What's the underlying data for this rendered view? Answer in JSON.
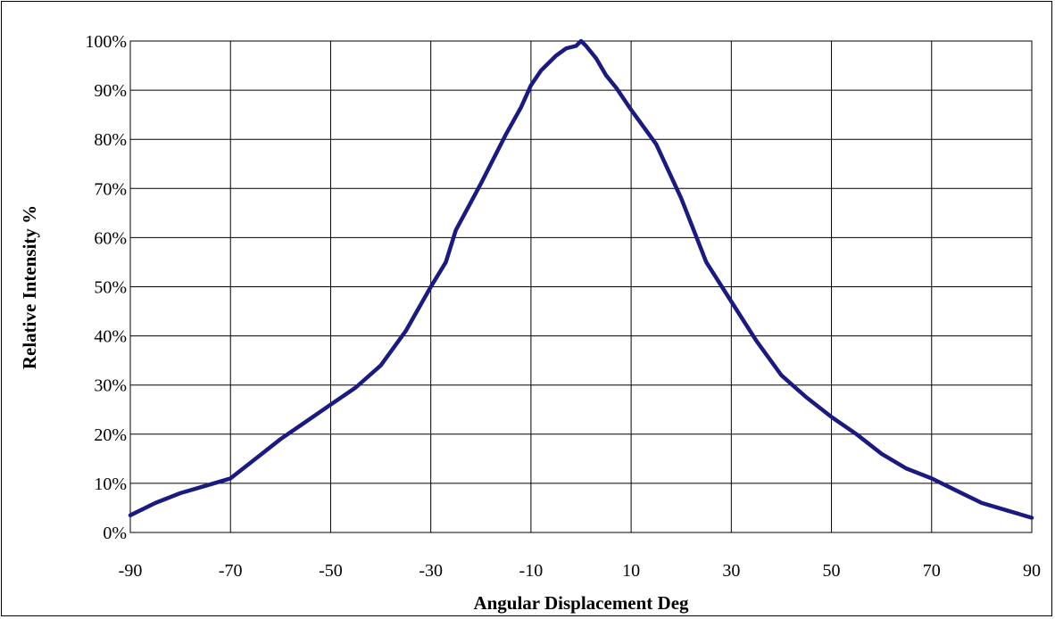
{
  "chart_data": {
    "type": "line",
    "title": "",
    "xlabel": "Angular Displacement  Deg",
    "ylabel": "Relative Intensity %",
    "xlim": [
      -90,
      90
    ],
    "ylim": [
      0,
      100
    ],
    "x_ticks": [
      "-90",
      "-70",
      "-50",
      "-30",
      "-10",
      "10",
      "30",
      "50",
      "70",
      "90"
    ],
    "y_ticks": [
      "0%",
      "10%",
      "20%",
      "30%",
      "40%",
      "50%",
      "60%",
      "70%",
      "80%",
      "90%",
      "100%"
    ],
    "grid": true,
    "legend": "none",
    "series": [
      {
        "color": "#1a1a80",
        "x": [
          -90,
          -85,
          -80,
          -75,
          -70,
          -65,
          -60,
          -55,
          -50,
          -45,
          -40,
          -35,
          -30,
          -27,
          -25,
          -20,
          -15,
          -12,
          -10,
          -8,
          -6,
          -5,
          -3,
          -1,
          0,
          1,
          3,
          5,
          7,
          10,
          15,
          20,
          25,
          30,
          35,
          40,
          45,
          50,
          55,
          60,
          65,
          70,
          75,
          80,
          85,
          90
        ],
        "y": [
          3.5,
          6,
          8,
          9.5,
          11,
          15,
          19,
          22.5,
          26,
          29.5,
          34,
          41,
          50,
          55,
          61.5,
          71,
          81,
          86.5,
          91,
          94,
          96,
          97,
          98.5,
          99,
          100,
          99,
          96.5,
          93,
          90.5,
          86,
          79,
          68,
          55,
          47,
          39,
          32,
          27.5,
          23.5,
          20,
          16,
          13,
          11,
          8.5,
          6,
          4.5,
          3
        ]
      }
    ]
  }
}
